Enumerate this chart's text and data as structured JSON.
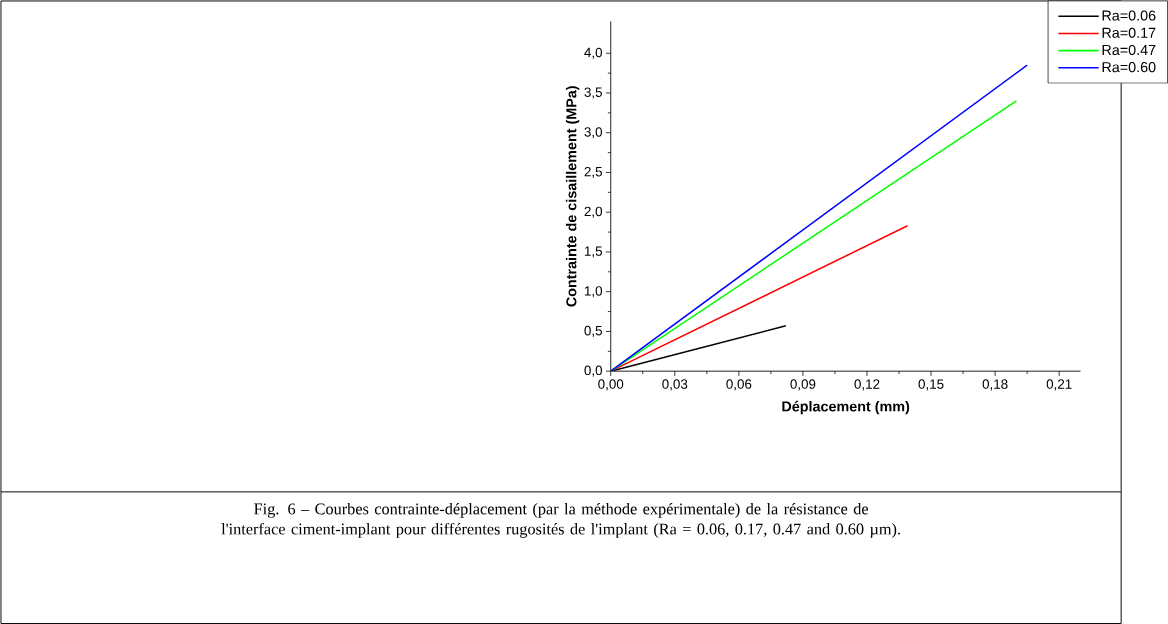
{
  "chart_data": {
    "type": "line",
    "xlabel": "Déplacement (mm)",
    "ylabel": "Contrainte de cisaillement (MPa)",
    "annotations": [
      "Fig. 6 – Courbes contrainte-déplacement (par la méthode expérimentale)  de la résistance de l'interface ciment-implant pour différentes rugosités de l'implant (Ra = 0.06, 0.17, 0.47 and 0.60 µm)."
    ],
    "series": [
      {
        "name": "Ra=0.06",
        "color": "#000000",
        "x": [
          0,
          0.082
        ],
        "values": [
          0,
          0.57
        ]
      },
      {
        "name": "Ra=0.17",
        "color": "#ff0000",
        "x": [
          0,
          0.139
        ],
        "values": [
          0,
          1.83
        ]
      },
      {
        "name": "Ra=0.47",
        "color": "#00ff00",
        "x": [
          0,
          0.19
        ],
        "values": [
          0,
          3.4
        ]
      },
      {
        "name": "Ra=0.60",
        "color": "#0000ff",
        "x": [
          0,
          0.195
        ],
        "values": [
          0,
          3.85
        ]
      }
    ],
    "xlim": [
      0,
      0.22
    ],
    "ylim": [
      0,
      4.4
    ],
    "xticks": [
      {
        "value": 0,
        "label": "0,00"
      },
      {
        "value": 0.03,
        "label": "0,03"
      },
      {
        "value": 0.06,
        "label": "0,06"
      },
      {
        "value": 0.09,
        "label": "0,09"
      },
      {
        "value": 0.12,
        "label": "0,12"
      },
      {
        "value": 0.15,
        "label": "0,15"
      },
      {
        "value": 0.18,
        "label": "0,18"
      },
      {
        "value": 0.21,
        "label": "0,21"
      }
    ],
    "yticks": [
      {
        "value": 0,
        "label": "0,0"
      },
      {
        "value": 0.5,
        "label": "0,5"
      },
      {
        "value": 1,
        "label": "1,0"
      },
      {
        "value": 1.5,
        "label": "1,5"
      },
      {
        "value": 2,
        "label": "2,0"
      },
      {
        "value": 2.5,
        "label": "2,5"
      },
      {
        "value": 3,
        "label": "3,0"
      },
      {
        "value": 3.5,
        "label": "3,5"
      },
      {
        "value": 4,
        "label": "4,0"
      }
    ],
    "grid": false,
    "legend": "top right",
    "marker": "none",
    "line_style": "solid"
  }
}
